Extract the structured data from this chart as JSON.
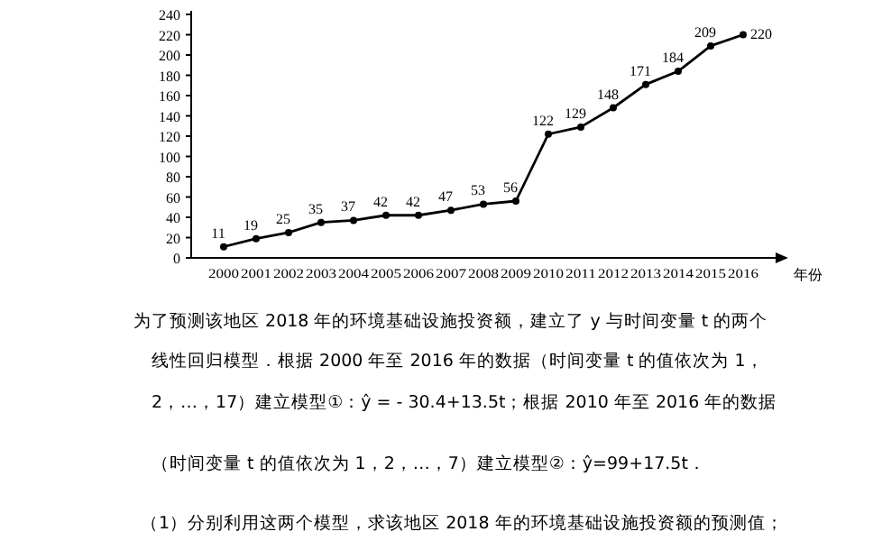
{
  "chart_data": {
    "type": "line",
    "xlabel": "年份",
    "categories": [
      "2000",
      "2001",
      "2002",
      "2003",
      "2004",
      "2005",
      "2006",
      "2007",
      "2008",
      "2009",
      "2010",
      "2011",
      "2012",
      "2013",
      "2014",
      "2015",
      "2016"
    ],
    "series": [
      {
        "color": "#000000",
        "values": [
          11,
          19,
          25,
          35,
          37,
          42,
          42,
          47,
          53,
          56,
          122,
          129,
          148,
          171,
          184,
          209,
          220
        ]
      }
    ],
    "ylim": [
      0,
      240
    ],
    "yticks": [
      0,
      20,
      40,
      60,
      80,
      100,
      120,
      140,
      160,
      180,
      200,
      220,
      240
    ],
    "data_labels": true,
    "marker": "circle",
    "line_style": "solid",
    "annotations": [
      "为了预测该地区 2018 年的环境基础设施投资额，建立了 y 与时间变量 t 的两个",
      "线性回归模型．根据 2000 年至 2016 年的数据（时间变量 t 的值依次为 1，",
      "2，…，17）建立模型①：ŷ = - 30.4+13.5t；根据 2010 年至 2016 年的数据",
      "（时间变量 t 的值依次为 1，2，…，7）建立模型②：ŷ=99+17.5t．",
      "（1）分别利用这两个模型，求该地区 2018 年的环境基础设施投资额的预测值；"
    ]
  }
}
